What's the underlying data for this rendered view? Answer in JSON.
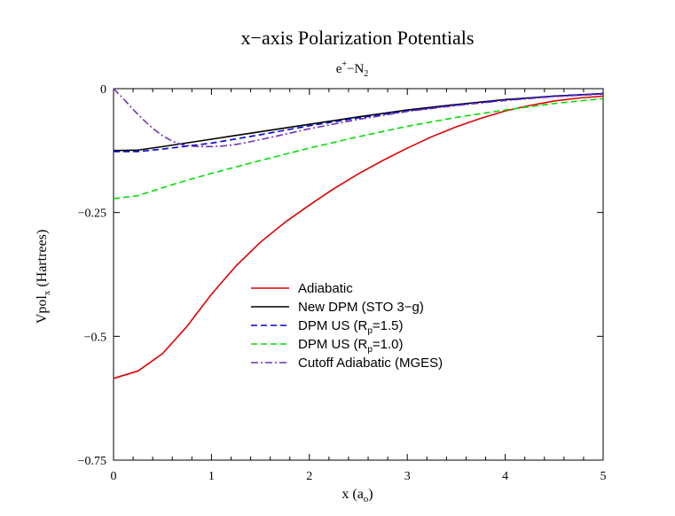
{
  "chart_data": {
    "type": "line",
    "title": "x−axis Polarization Potentials",
    "subtitle": {
      "main": "e",
      "sup": "+",
      "mid": "−N",
      "sub": "2"
    },
    "xlabel": {
      "main": "x (a",
      "sub": "o",
      "end": ")"
    },
    "ylabel": {
      "main": "Vpol",
      "sub": "x",
      "end": " (Hartrees)"
    },
    "xlim": [
      0,
      5
    ],
    "ylim": [
      -0.75,
      0
    ],
    "xticks": [
      0,
      1,
      2,
      3,
      4,
      5
    ],
    "xtick_labels": [
      "0",
      "1",
      "2",
      "3",
      "4",
      "5"
    ],
    "yticks": [
      0,
      -0.25,
      -0.5,
      -0.75
    ],
    "ytick_labels": [
      "0",
      "−0.25",
      "−0.5",
      "−0.75"
    ],
    "grid": false,
    "legend_position": "center",
    "series": [
      {
        "name": "Adiabatic",
        "name_parts": {
          "main": "Adiabatic"
        },
        "color": "#e00000",
        "style": "solid",
        "x": [
          0,
          0.25,
          0.5,
          0.75,
          1.0,
          1.25,
          1.5,
          1.75,
          2.0,
          2.25,
          2.5,
          2.75,
          3.0,
          3.25,
          3.5,
          3.75,
          4.0,
          4.25,
          4.5,
          4.75,
          5.0
        ],
        "y": [
          -0.585,
          -0.57,
          -0.535,
          -0.48,
          -0.415,
          -0.358,
          -0.31,
          -0.27,
          -0.235,
          -0.202,
          -0.172,
          -0.145,
          -0.12,
          -0.097,
          -0.077,
          -0.06,
          -0.045,
          -0.034,
          -0.025,
          -0.019,
          -0.015
        ]
      },
      {
        "name": "New DPM (STO 3−g)",
        "name_parts": {
          "main": "New DPM (STO 3−g)"
        },
        "color": "#000000",
        "style": "solid",
        "x": [
          0,
          0.25,
          0.5,
          1.0,
          1.5,
          2.0,
          2.5,
          3.0,
          3.5,
          4.0,
          4.5,
          5.0
        ],
        "y": [
          -0.125,
          -0.124,
          -0.117,
          -0.102,
          -0.087,
          -0.072,
          -0.057,
          -0.043,
          -0.032,
          -0.022,
          -0.015,
          -0.01
        ]
      },
      {
        "name": "DPM US (Rp=1.5)",
        "name_parts": {
          "main": "DPM  US (R",
          "sub": "p",
          "end": "=1.5)"
        },
        "color": "#0000e0",
        "style": "dashed",
        "x": [
          0,
          0.25,
          0.5,
          1.0,
          1.5,
          2.0,
          2.5,
          3.0,
          3.5,
          4.0,
          4.5,
          5.0
        ],
        "y": [
          -0.127,
          -0.127,
          -0.122,
          -0.11,
          -0.093,
          -0.075,
          -0.059,
          -0.045,
          -0.033,
          -0.023,
          -0.015,
          -0.01
        ]
      },
      {
        "name": "DPM US (Rp=1.0)",
        "name_parts": {
          "main": "DPM US (R",
          "sub": "p",
          "end": "=1.0)"
        },
        "color": "#00e000",
        "style": "dashed",
        "x": [
          0,
          0.25,
          0.5,
          0.75,
          1.0,
          1.5,
          2.0,
          2.5,
          3.0,
          3.5,
          4.0,
          4.5,
          5.0
        ],
        "y": [
          -0.222,
          -0.216,
          -0.2,
          -0.185,
          -0.171,
          -0.145,
          -0.12,
          -0.097,
          -0.076,
          -0.058,
          -0.043,
          -0.03,
          -0.02
        ]
      },
      {
        "name": "Cutoff Adiabatic (MGES)",
        "name_parts": {
          "main": "Cutoff Adiabatic (MGES)"
        },
        "color": "#7030b0",
        "style": "dashdot",
        "x": [
          0,
          0.1,
          0.2,
          0.3,
          0.4,
          0.5,
          0.6,
          0.7,
          0.8,
          0.9,
          1.0,
          1.1,
          1.2,
          1.3,
          1.5,
          2.0,
          2.5,
          3.0,
          3.5,
          4.0,
          4.5,
          5.0
        ],
        "y": [
          0,
          -0.02,
          -0.042,
          -0.062,
          -0.08,
          -0.095,
          -0.106,
          -0.113,
          -0.116,
          -0.117,
          -0.117,
          -0.116,
          -0.114,
          -0.111,
          -0.103,
          -0.081,
          -0.062,
          -0.046,
          -0.034,
          -0.024,
          -0.016,
          -0.011
        ]
      }
    ]
  }
}
